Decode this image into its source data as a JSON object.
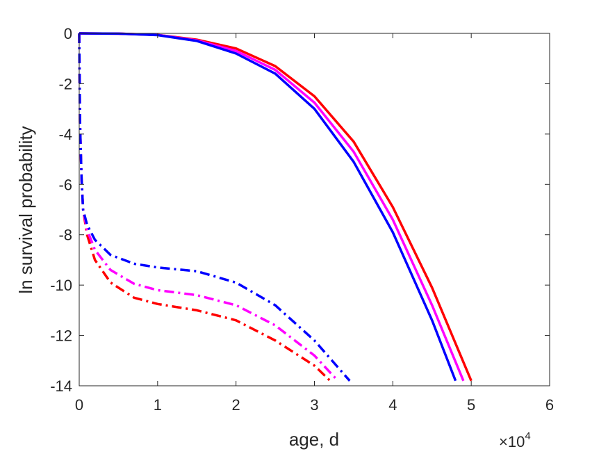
{
  "chart_data": {
    "type": "line",
    "xlabel": "age, d",
    "ylabel": "ln survival probability",
    "x_multiplier": "×10",
    "x_multiplier_exp": "4",
    "xlim": [
      0,
      6
    ],
    "ylim": [
      -14,
      0
    ],
    "xticks": [
      0,
      1,
      2,
      3,
      4,
      5,
      6
    ],
    "yticks": [
      0,
      -2,
      -4,
      -6,
      -8,
      -10,
      -12,
      -14
    ],
    "x_tick_labels": [
      "0",
      "1",
      "2",
      "3",
      "4",
      "5",
      "6"
    ],
    "y_tick_labels": [
      "0",
      "-2",
      "-4",
      "-6",
      "-8",
      "-10",
      "-12",
      "-14"
    ],
    "grid": false,
    "series": [
      {
        "color": "#ff0000",
        "style": "solid",
        "x": [
          0.0,
          0.5,
          1.0,
          1.5,
          2.0,
          2.5,
          3.0,
          3.5,
          4.0,
          4.5,
          5.0
        ],
        "y": [
          0.0,
          -0.01,
          -0.06,
          -0.25,
          -0.6,
          -1.3,
          -2.5,
          -4.3,
          -6.9,
          -10.1,
          -13.8
        ]
      },
      {
        "color": "#ff00ff",
        "style": "solid",
        "x": [
          0.0,
          0.5,
          1.0,
          1.5,
          2.0,
          2.5,
          3.0,
          3.5,
          4.0,
          4.5,
          4.9
        ],
        "y": [
          0.0,
          -0.01,
          -0.06,
          -0.28,
          -0.7,
          -1.45,
          -2.75,
          -4.7,
          -7.4,
          -10.8,
          -13.8
        ]
      },
      {
        "color": "#0000ff",
        "style": "solid",
        "x": [
          0.0,
          0.5,
          1.0,
          1.5,
          2.0,
          2.5,
          3.0,
          3.5,
          4.0,
          4.5,
          4.8
        ],
        "y": [
          0.0,
          -0.01,
          -0.07,
          -0.3,
          -0.8,
          -1.6,
          -3.0,
          -5.1,
          -7.9,
          -11.4,
          -13.8
        ]
      },
      {
        "color": "#ff0000",
        "style": "dashdot",
        "x": [
          0.0,
          0.01,
          0.03,
          0.05,
          0.1,
          0.2,
          0.4,
          0.7,
          1.0,
          1.5,
          2.0,
          2.5,
          3.0,
          3.2
        ],
        "y": [
          0.0,
          -3.5,
          -5.8,
          -7.0,
          -8.0,
          -9.0,
          -9.9,
          -10.5,
          -10.75,
          -11.0,
          -11.4,
          -12.2,
          -13.2,
          -13.8
        ]
      },
      {
        "color": "#ff00ff",
        "style": "dashdot",
        "x": [
          0.0,
          0.01,
          0.03,
          0.05,
          0.1,
          0.2,
          0.4,
          0.7,
          1.0,
          1.5,
          2.0,
          2.5,
          3.0,
          3.3
        ],
        "y": [
          0.0,
          -3.5,
          -5.8,
          -7.0,
          -7.8,
          -8.6,
          -9.4,
          -9.95,
          -10.2,
          -10.4,
          -10.8,
          -11.6,
          -12.8,
          -13.8
        ]
      },
      {
        "color": "#0000ff",
        "style": "dashdot",
        "x": [
          0.0,
          0.01,
          0.03,
          0.05,
          0.1,
          0.2,
          0.4,
          0.7,
          1.0,
          1.5,
          2.0,
          2.5,
          3.0,
          3.45
        ],
        "y": [
          0.0,
          -3.5,
          -5.8,
          -7.0,
          -7.6,
          -8.2,
          -8.8,
          -9.15,
          -9.3,
          -9.45,
          -9.9,
          -10.8,
          -12.2,
          -13.8
        ]
      }
    ]
  }
}
